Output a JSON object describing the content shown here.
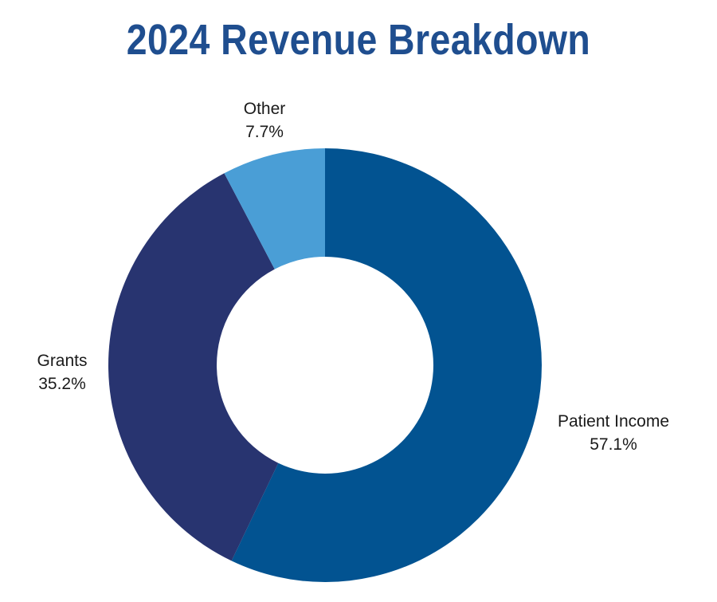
{
  "chart_data": {
    "type": "pie",
    "title": "2024 Revenue Breakdown",
    "donut": true,
    "slices": [
      {
        "label": "Patient Income",
        "value": 57.1,
        "display": "57.1%",
        "color": "#025391"
      },
      {
        "label": "Grants",
        "value": 35.2,
        "display": "35.2%",
        "color": "#283470"
      },
      {
        "label": "Other",
        "value": 7.7,
        "display": "7.7%",
        "color": "#4a9ed6"
      }
    ],
    "start_angle": "12 o'clock",
    "direction": "clockwise",
    "legend": "none",
    "title_color": "#1f4e8f"
  }
}
